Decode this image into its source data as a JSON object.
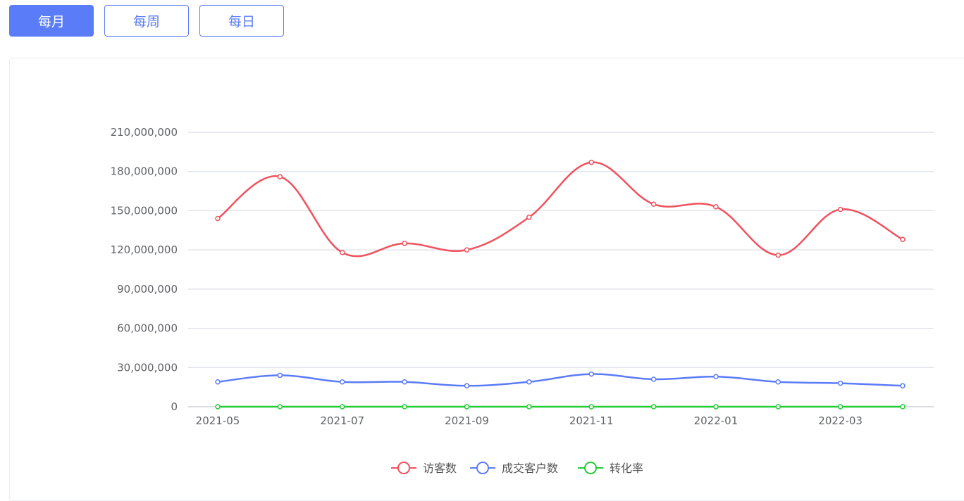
{
  "tabs": [
    {
      "label": "每月",
      "active": true
    },
    {
      "label": "每周",
      "active": false
    },
    {
      "label": "每日",
      "active": false
    }
  ],
  "chart_data": {
    "type": "line",
    "smooth": true,
    "x": [
      "2021-05",
      "2021-06",
      "2021-07",
      "2021-08",
      "2021-09",
      "2021-10",
      "2021-11",
      "2021-12",
      "2022-01",
      "2022-02",
      "2022-03",
      "2022-04"
    ],
    "xtick_labels": [
      "2021-05",
      "2021-07",
      "2021-09",
      "2021-11",
      "2022-01",
      "2022-03"
    ],
    "yticks": [
      0,
      30000000,
      60000000,
      90000000,
      120000000,
      150000000,
      180000000,
      210000000
    ],
    "ytick_labels": [
      "0",
      "30,000,000",
      "60,000,000",
      "90,000,000",
      "120,000,000",
      "150,000,000",
      "180,000,000",
      "210,000,000"
    ],
    "ylim": [
      0,
      210000000
    ],
    "grid": true,
    "legend_position": "bottom",
    "series": [
      {
        "name": "访客数",
        "color": "#f0525e",
        "values": [
          144000000,
          176000000,
          118000000,
          125000000,
          120000000,
          145000000,
          187000000,
          155000000,
          153000000,
          116000000,
          151000000,
          128000000
        ]
      },
      {
        "name": "成交客户数",
        "color": "#5b7cf8",
        "values": [
          19000000,
          24000000,
          19000000,
          19000000,
          16000000,
          19000000,
          25000000,
          21000000,
          23000000,
          19000000,
          18000000,
          16000000
        ]
      },
      {
        "name": "转化率",
        "color": "#22cc33",
        "values": [
          0.1,
          0.1,
          0.1,
          0.1,
          0.1,
          0.1,
          0.1,
          0.1,
          0.1,
          0.1,
          0.1,
          0.1
        ]
      }
    ]
  }
}
